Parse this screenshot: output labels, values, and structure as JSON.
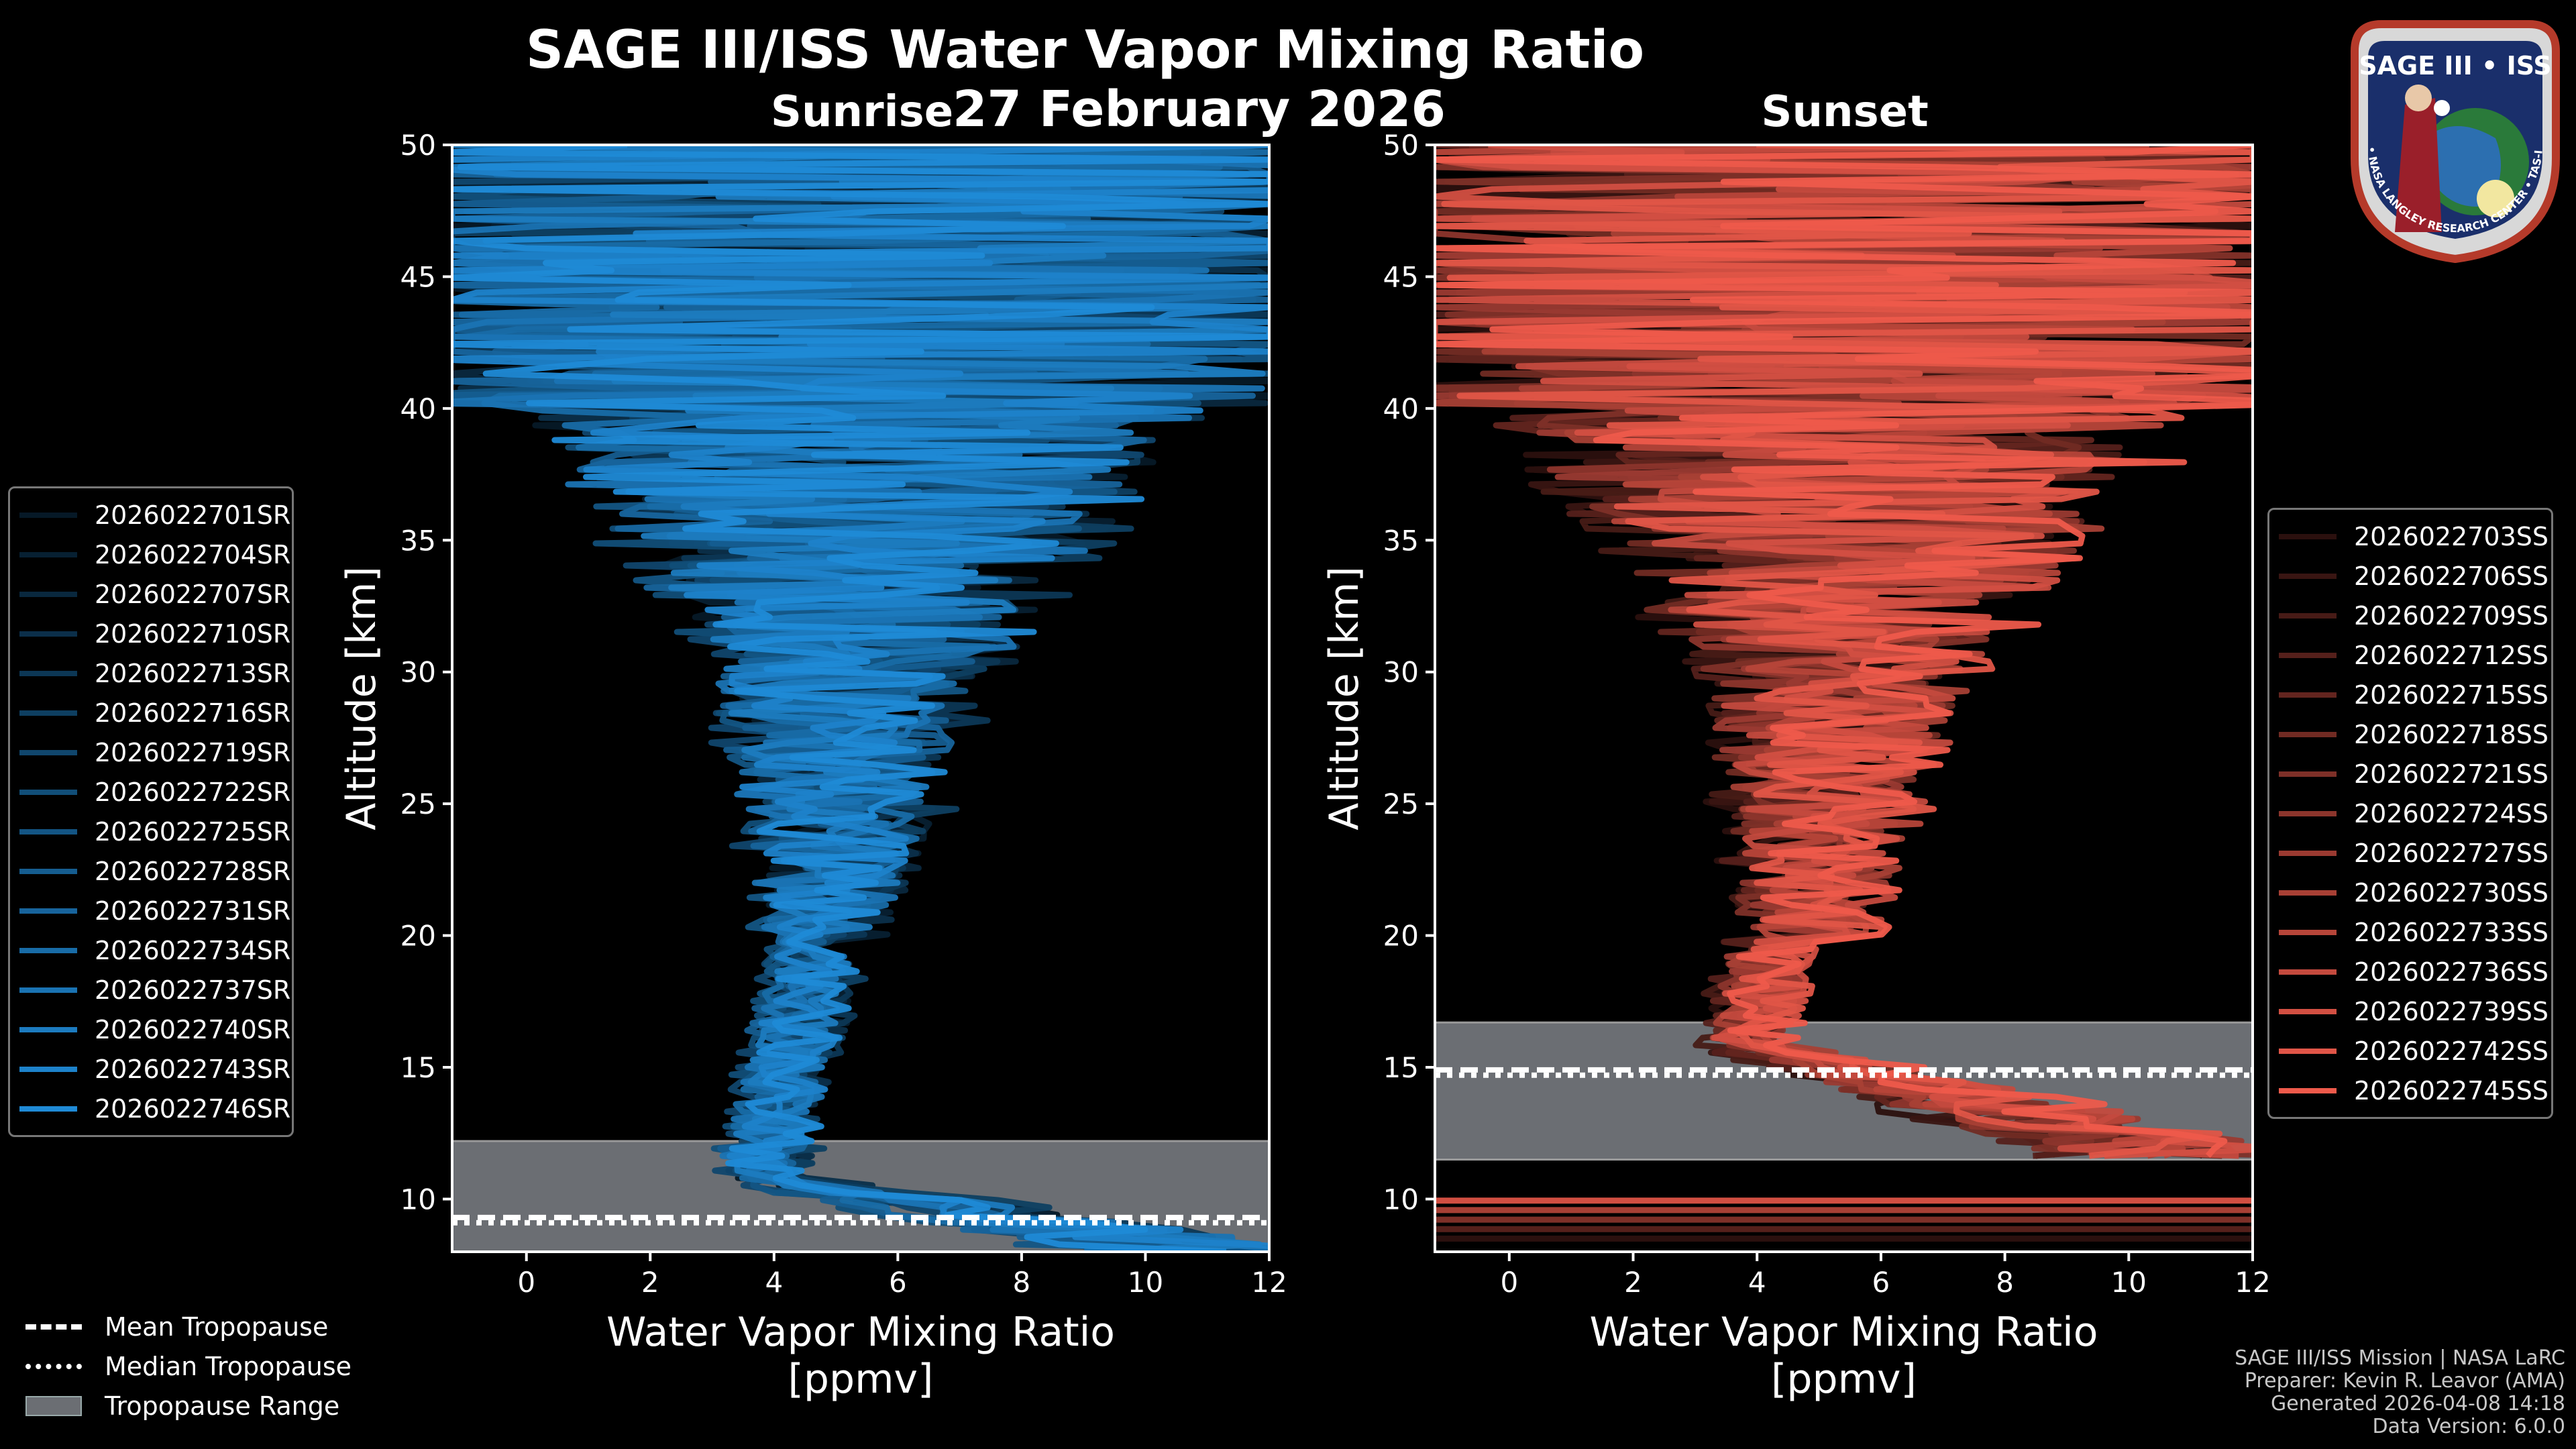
{
  "page": {
    "title": "SAGE III/ISS Water Vapor Mixing Ratio",
    "date": "27 February 2026",
    "credits": [
      "SAGE III/ISS Mission | NASA LaRC",
      "Preparer: Kevin R. Leavor (AMA)",
      "Generated 2026-04-08 14:18",
      "Data Version: 6.0.0"
    ],
    "logo": {
      "top_text": "SAGE III • ISS",
      "ring_text": "BALL • NASA LANGLEY RESEARCH CENTER • TAS-I • ESA"
    },
    "tropopause_legend": [
      "Mean Tropopause",
      "Median Tropopause",
      "Tropopause Range"
    ]
  },
  "colors": {
    "sunrise": "#1f8ad6",
    "sunset": "#ee5a4b",
    "tropopause_fill": "#6b6e73",
    "axes": "#ffffff"
  },
  "chart_data": [
    {
      "type": "line",
      "title": "Sunrise",
      "xlabel": "Water Vapor Mixing Ratio",
      "xlabel2": "[ppmv]",
      "ylabel": "Altitude [km]",
      "xlim": [
        -1.2,
        12
      ],
      "ylim": [
        8,
        50
      ],
      "xticks": [
        0,
        2,
        4,
        6,
        8,
        10,
        12
      ],
      "yticks": [
        10,
        15,
        20,
        25,
        30,
        35,
        40,
        45,
        50
      ],
      "legend_position": "left",
      "tropopause": {
        "mean": 9.3,
        "median": 9.1,
        "range": [
          8.0,
          12.2
        ]
      },
      "series": [
        "2026022701SR",
        "2026022704SR",
        "2026022707SR",
        "2026022710SR",
        "2026022713SR",
        "2026022716SR",
        "2026022719SR",
        "2026022722SR",
        "2026022725SR",
        "2026022728SR",
        "2026022731SR",
        "2026022734SR",
        "2026022737SR",
        "2026022740SR",
        "2026022743SR",
        "2026022746SR"
      ]
    },
    {
      "type": "line",
      "title": "Sunset",
      "xlabel": "Water Vapor Mixing Ratio",
      "xlabel2": "[ppmv]",
      "ylabel": "Altitude [km]",
      "xlim": [
        -1.2,
        12
      ],
      "ylim": [
        8,
        50
      ],
      "xticks": [
        0,
        2,
        4,
        6,
        8,
        10,
        12
      ],
      "yticks": [
        10,
        15,
        20,
        25,
        30,
        35,
        40,
        45,
        50
      ],
      "legend_position": "right",
      "tropopause": {
        "mean": 14.9,
        "median": 14.7,
        "range": [
          11.5,
          16.7
        ]
      },
      "series": [
        "2026022703SS",
        "2026022706SS",
        "2026022709SS",
        "2026022712SS",
        "2026022715SS",
        "2026022718SS",
        "2026022721SS",
        "2026022724SS",
        "2026022727SS",
        "2026022730SS",
        "2026022733SS",
        "2026022736SS",
        "2026022739SS",
        "2026022742SS",
        "2026022745SS"
      ]
    }
  ]
}
